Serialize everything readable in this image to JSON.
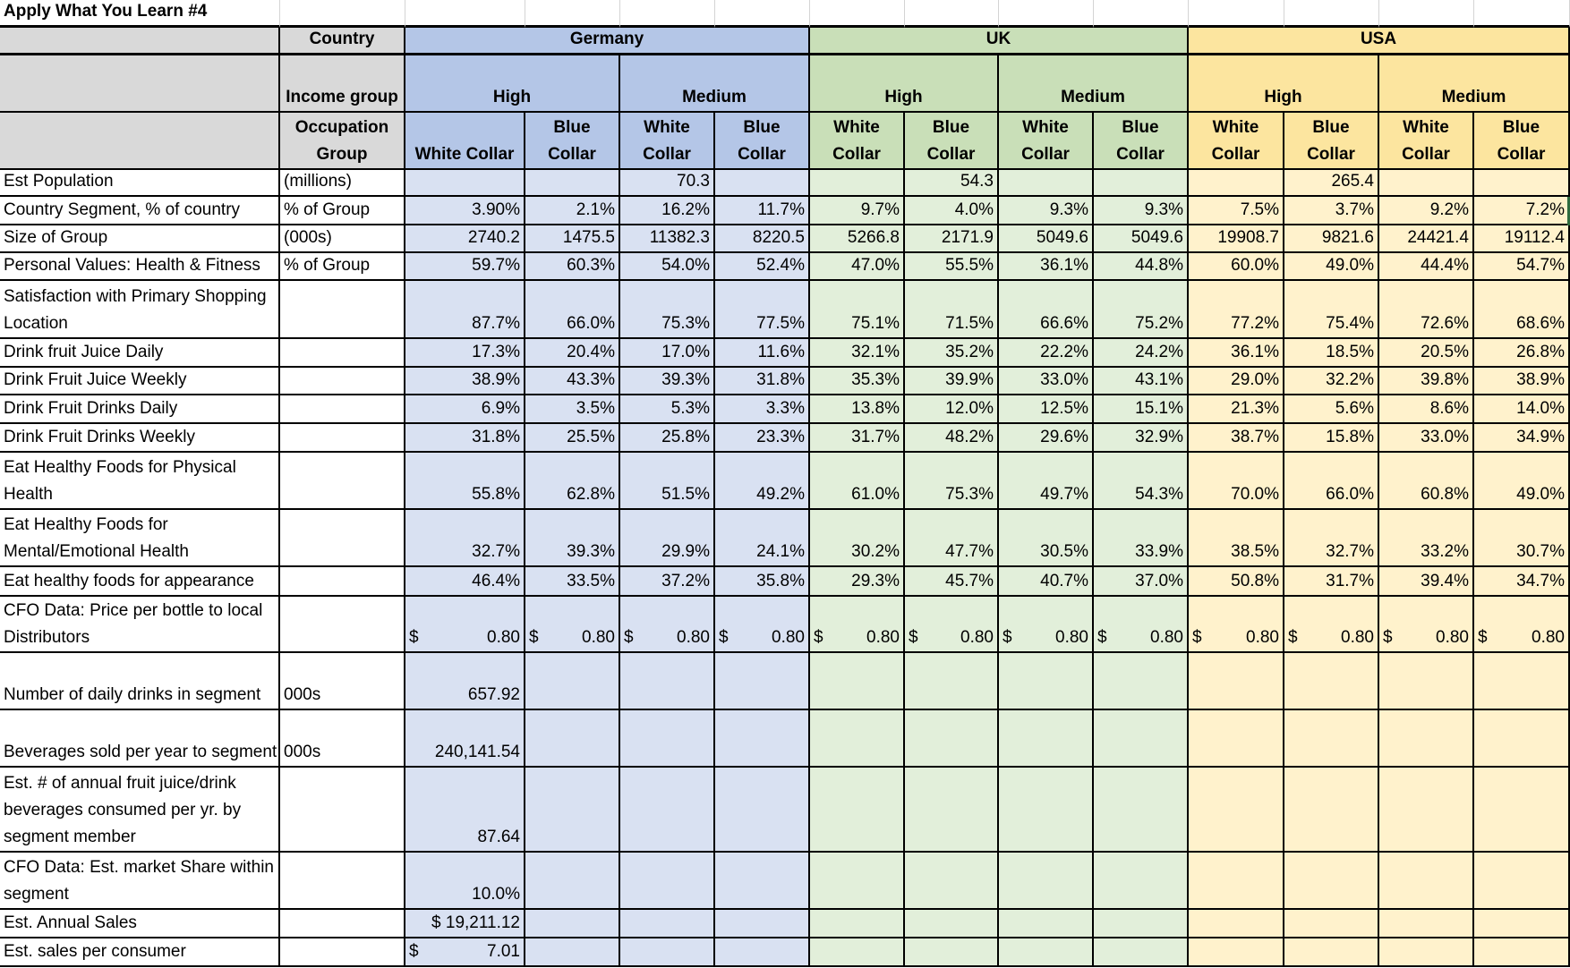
{
  "sheet": {
    "title": "Apply What You Learn #4",
    "header": {
      "country_label": "Country",
      "income_label": "Income group",
      "occupation_label": "Occupation Group",
      "countries": [
        {
          "name": "Germany",
          "incomes": [
            {
              "name": "High",
              "occupations": [
                "White Collar",
                "Blue Collar"
              ]
            },
            {
              "name": "Medium",
              "occupations": [
                "White Collar",
                "Blue Collar"
              ]
            }
          ]
        },
        {
          "name": "UK",
          "incomes": [
            {
              "name": "High",
              "occupations": [
                "White Collar",
                "Blue Collar"
              ]
            },
            {
              "name": "Medium",
              "occupations": [
                "White Collar",
                "Blue Collar"
              ]
            }
          ]
        },
        {
          "name": "USA",
          "incomes": [
            {
              "name": "High",
              "occupations": [
                "White Collar",
                "Blue Collar"
              ]
            },
            {
              "name": "Medium",
              "occupations": [
                "White Collar",
                "Blue Collar"
              ]
            }
          ]
        }
      ],
      "occupation_headers": [
        "White Collar",
        "Blue Collar",
        "White Collar",
        "Blue Collar",
        "White Collar",
        "Blue Collar",
        "White Collar",
        "Blue Collar",
        "White Collar",
        "Blue Collar",
        "White Collar",
        "Blue Collar"
      ]
    },
    "colors": {
      "germany_header": "#b4c6e7",
      "germany_data": "#d9e1f2",
      "uk_header": "#c9dfb8",
      "uk_data": "#e2efda",
      "usa_header": "#fce59f",
      "usa_data": "#fff2cc",
      "label_header": "#d9d9d9"
    },
    "rows": [
      {
        "label": "Est Population",
        "unit": "(millions)",
        "values": [
          "",
          "",
          "70.3",
          "",
          "",
          "54.3",
          "",
          "",
          "",
          "265.4",
          "",
          ""
        ]
      },
      {
        "label": "Country Segment, % of country",
        "unit": "% of Group",
        "values": [
          "3.90%",
          "2.1%",
          "16.2%",
          "11.7%",
          "9.7%",
          "4.0%",
          "9.3%",
          "9.3%",
          "7.5%",
          "3.7%",
          "9.2%",
          "7.2%"
        ]
      },
      {
        "label": "Size of Group",
        "unit": "(000s)",
        "values": [
          "2740.2",
          "1475.5",
          "11382.3",
          "8220.5",
          "5266.8",
          "2171.9",
          "5049.6",
          "5049.6",
          "19908.7",
          "9821.6",
          "24421.4",
          "19112.4"
        ]
      },
      {
        "label": "Personal Values: Health & Fitness",
        "unit": "% of Group",
        "values": [
          "59.7%",
          "60.3%",
          "54.0%",
          "52.4%",
          "47.0%",
          "55.5%",
          "36.1%",
          "44.8%",
          "60.0%",
          "49.0%",
          "44.4%",
          "54.7%"
        ]
      },
      {
        "label": "Satisfaction with Primary Shopping Location",
        "unit": "",
        "values": [
          "87.7%",
          "66.0%",
          "75.3%",
          "77.5%",
          "75.1%",
          "71.5%",
          "66.6%",
          "75.2%",
          "77.2%",
          "75.4%",
          "72.6%",
          "68.6%"
        ]
      },
      {
        "label": "Drink fruit Juice Daily",
        "unit": "",
        "values": [
          "17.3%",
          "20.4%",
          "17.0%",
          "11.6%",
          "32.1%",
          "35.2%",
          "22.2%",
          "24.2%",
          "36.1%",
          "18.5%",
          "20.5%",
          "26.8%"
        ]
      },
      {
        "label": "Drink Fruit Juice Weekly",
        "unit": "",
        "values": [
          "38.9%",
          "43.3%",
          "39.3%",
          "31.8%",
          "35.3%",
          "39.9%",
          "33.0%",
          "43.1%",
          "29.0%",
          "32.2%",
          "39.8%",
          "38.9%"
        ]
      },
      {
        "label": "Drink Fruit Drinks Daily",
        "unit": "",
        "values": [
          "6.9%",
          "3.5%",
          "5.3%",
          "3.3%",
          "13.8%",
          "12.0%",
          "12.5%",
          "15.1%",
          "21.3%",
          "5.6%",
          "8.6%",
          "14.0%"
        ]
      },
      {
        "label": "Drink Fruit Drinks Weekly",
        "unit": "",
        "values": [
          "31.8%",
          "25.5%",
          "25.8%",
          "23.3%",
          "31.7%",
          "48.2%",
          "29.6%",
          "32.9%",
          "38.7%",
          "15.8%",
          "33.0%",
          "34.9%"
        ]
      },
      {
        "label": "Eat Healthy Foods for Physical Health",
        "unit": "",
        "values": [
          "55.8%",
          "62.8%",
          "51.5%",
          "49.2%",
          "61.0%",
          "75.3%",
          "49.7%",
          "54.3%",
          "70.0%",
          "66.0%",
          "60.8%",
          "49.0%"
        ]
      },
      {
        "label": "Eat Healthy Foods for Mental/Emotional Health",
        "unit": "",
        "values": [
          "32.7%",
          "39.3%",
          "29.9%",
          "24.1%",
          "30.2%",
          "47.7%",
          "30.5%",
          "33.9%",
          "38.5%",
          "32.7%",
          "33.2%",
          "30.7%"
        ]
      },
      {
        "label": "Eat healthy foods for appearance",
        "unit": "",
        "values": [
          "46.4%",
          "33.5%",
          "37.2%",
          "35.8%",
          "29.3%",
          "45.7%",
          "40.7%",
          "37.0%",
          "50.8%",
          "31.7%",
          "39.4%",
          "34.7%"
        ]
      },
      {
        "label": "CFO Data: Price per bottle to local Distributors",
        "unit": "",
        "currency": true,
        "values": [
          "0.80",
          "0.80",
          "0.80",
          "0.80",
          "0.80",
          "0.80",
          "0.80",
          "0.80",
          "0.80",
          "0.80",
          "0.80",
          "0.80"
        ]
      },
      {
        "label": "Number of daily drinks in segment",
        "unit": "000s",
        "values": [
          "657.92",
          "",
          "",
          "",
          "",
          "",
          "",
          "",
          "",
          "",
          "",
          ""
        ]
      },
      {
        "label": "Beverages sold per year to segment",
        "unit": "000s",
        "values": [
          "240,141.54",
          "",
          "",
          "",
          "",
          "",
          "",
          "",
          "",
          "",
          "",
          ""
        ]
      },
      {
        "label": "Est. # of annual fruit juice/drink beverages consumed per yr. by segment member",
        "unit": "",
        "values": [
          "87.64",
          "",
          "",
          "",
          "",
          "",
          "",
          "",
          "",
          "",
          "",
          ""
        ]
      },
      {
        "label": "CFO Data: Est. market Share within segment",
        "unit": "",
        "values": [
          "10.0%",
          "",
          "",
          "",
          "",
          "",
          "",
          "",
          "",
          "",
          "",
          ""
        ]
      },
      {
        "label": "Est. Annual Sales",
        "unit": "",
        "values": [
          "$ 19,211.12",
          "",
          "",
          "",
          "",
          "",
          "",
          "",
          "",
          "",
          "",
          ""
        ]
      },
      {
        "label": "Est. sales per consumer",
        "unit": "",
        "currency_first": true,
        "values": [
          "7.01",
          "",
          "",
          "",
          "",
          "",
          "",
          "",
          "",
          "",
          "",
          ""
        ]
      }
    ],
    "currency_symbol": "$"
  }
}
